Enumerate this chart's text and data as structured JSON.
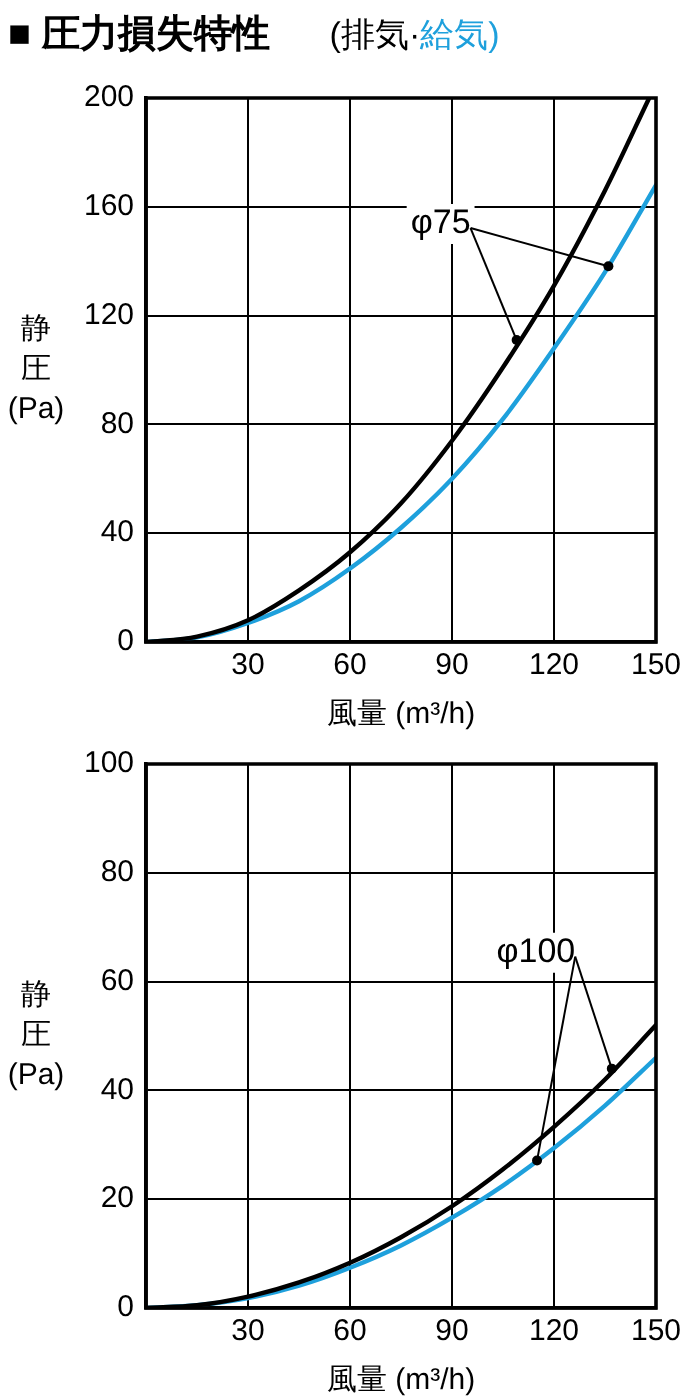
{
  "chart_data": [
    {
      "type": "line",
      "title": "■ 圧力損失特性",
      "subtitle": "(排気·給気)",
      "xlabel": "風量 (m³/h)",
      "ylabel": "静圧(Pa)",
      "series": [
        {
          "color": "#000000",
          "x": [
            0,
            15,
            30,
            45,
            60,
            75,
            90,
            105,
            120,
            135,
            148
          ],
          "values": [
            0,
            2,
            8,
            19,
            33,
            51,
            74,
            101,
            131,
            166,
            200
          ]
        },
        {
          "color": "#1ea0dc",
          "x": [
            0,
            15,
            30,
            45,
            60,
            75,
            90,
            105,
            120,
            135,
            150
          ],
          "values": [
            0,
            1.7,
            7,
            15,
            27,
            42,
            60,
            82,
            108,
            136,
            168
          ]
        }
      ],
      "annotations": [
        {
          "text": "φ75",
          "x": 109,
          "y": 111
        }
      ],
      "xlim": [
        0,
        150
      ],
      "xticks": [
        {
          "value": 0,
          "label": null
        },
        30,
        60,
        90,
        120,
        150
      ],
      "ylim": [
        0,
        200
      ],
      "yticks": [
        0,
        40,
        80,
        120,
        160,
        200
      ],
      "grid": true,
      "marker": "none",
      "line_style": "solid"
    },
    {
      "type": "line",
      "xlabel": "風量 (m³/h)",
      "ylabel": "静圧(Pa)",
      "series": [
        {
          "color": "#000000",
          "x": [
            0,
            15,
            30,
            45,
            60,
            75,
            90,
            105,
            120,
            135,
            150
          ],
          "values": [
            0,
            0.5,
            2.1,
            4.7,
            8.3,
            13,
            18.7,
            25.5,
            33.3,
            42,
            52
          ]
        },
        {
          "color": "#1ea0dc",
          "x": [
            0,
            15,
            30,
            45,
            60,
            75,
            90,
            105,
            120,
            135,
            150
          ],
          "values": [
            0,
            0.5,
            1.8,
            4.1,
            7.4,
            11.5,
            16.6,
            22.5,
            29.4,
            37.2,
            46
          ]
        }
      ],
      "annotations": [
        {
          "text": "φ100",
          "x": 137,
          "y": 44
        }
      ],
      "xlim": [
        0,
        150
      ],
      "xticks": [
        {
          "value": 0,
          "label": null
        },
        30,
        60,
        90,
        120,
        150
      ],
      "ylim": [
        0,
        100
      ],
      "yticks": [
        0,
        20,
        40,
        60,
        80,
        100
      ],
      "grid": true,
      "marker": "none",
      "line_style": "solid"
    }
  ]
}
